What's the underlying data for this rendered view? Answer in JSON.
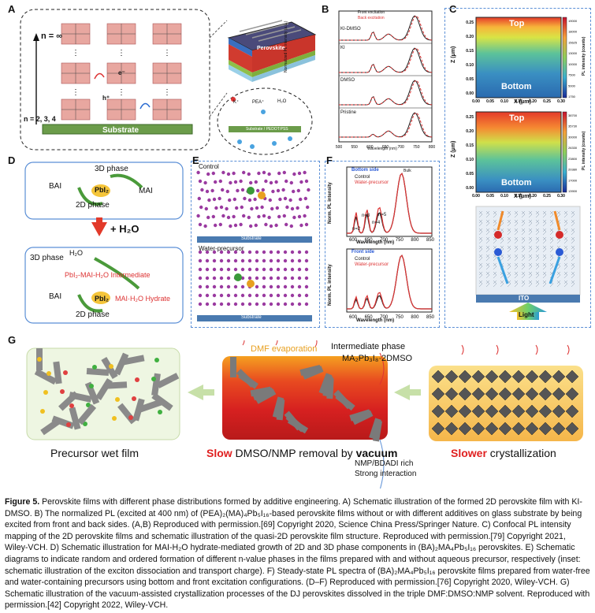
{
  "panel_labels": {
    "a": "A",
    "b": "B",
    "c": "C",
    "d": "D",
    "e": "E",
    "f": "F",
    "g": "G"
  },
  "panel_a": {
    "n_inf": "n = ∞",
    "n_234": "n = 2, 3, 4",
    "substrate": "Substrate",
    "stack_layers": [
      "Ag",
      "BCP",
      "PC₆₁BM",
      "Perovskite",
      "PEDOT:PSS",
      "ITO"
    ],
    "e_minus": "e⁻",
    "h_plus": "h⁺",
    "legend": [
      "K⁺",
      "PEA⁺",
      "H₂O"
    ],
    "bubble_substrate": "Substrate / PEDOT:PSS"
  },
  "panel_b": {
    "legend": [
      "Front excitation",
      "Back excitation"
    ],
    "ylabel": "Normalized PL intensity (a.u.)",
    "xlabel": "Wavelength (nm)",
    "rows": [
      "KI-DMSO",
      "KI",
      "DMSO",
      "Pristine"
    ],
    "ticks": [
      "500",
      "550",
      "600",
      "650",
      "700",
      "750",
      "800"
    ]
  },
  "panel_c": {
    "top": "Top",
    "bottom": "Bottom",
    "ylabel": "Z (μm)",
    "xlabel": "X (μm)",
    "colorbar_label": "PL intensity (counts)",
    "y_ticks": [
      "0.25",
      "0.20",
      "0.15",
      "0.10",
      "0.05",
      "0.00"
    ],
    "x_ticks": [
      "0.00",
      "0.05",
      "0.10",
      "0.15",
      "0.20",
      "0.25",
      "0.30"
    ],
    "cbar1": [
      "19000",
      "18000",
      "15625",
      "13000",
      "10000",
      "7500",
      "5000",
      "1750"
    ],
    "cbar2": [
      "38700",
      "35730",
      "30000",
      "26330",
      "23800",
      "20380",
      "17000",
      "13900"
    ],
    "ito": "ITO",
    "light": "Light"
  },
  "panel_d": {
    "bai": "BAI",
    "pbi2": "PbI₂",
    "mai": "MAI",
    "phase3d": "3D phase",
    "phase2d": "2D phase",
    "plus_h2o": "+ H₂O",
    "h2o": "H₂O",
    "intermediate": "PbI₂-MAI-H₂O Intermediate",
    "hydrate": "MAI·H₂O Hydrate"
  },
  "panel_e": {
    "control": "Control",
    "water": "Water-precursor",
    "substrate": "Substrate"
  },
  "panel_f": {
    "bottom_side": "Bottom side",
    "front_side": "Front side",
    "legend": [
      "Control",
      "Water-precursor"
    ],
    "ylabel": "Norm. PL intensity",
    "xlabel": "Wavelength (nm)",
    "ticks": [
      "600",
      "650",
      "700",
      "750",
      "800",
      "850"
    ],
    "n_labels": [
      "n=2",
      "n=3",
      "n=4",
      "n=5"
    ],
    "bulk": "Bulk"
  },
  "panel_g": {
    "dmf": "DMF evaporation",
    "intermediate_line1": "Intermediate phase",
    "intermediate_line2": "MA₂Pb₃I₈·2DMSO",
    "nmp1": "NMP/BDADI rich",
    "nmp2": "Strong interaction",
    "label1": "Precursor wet film",
    "label2_slow": "Slow",
    "label2_mid": " DMSO/NMP removal by ",
    "label2_vac": "vacuum",
    "label3_slow": "Slower",
    "label3_rest": " crystallization"
  },
  "caption": {
    "fig": "Figure 5.",
    "text": " Perovskite films with different phase distributions formed by additive engineering. A) Schematic illustration of the formed 2D perovskite film with KI-DMSO. B) The normalized PL (excited at 400 nm) of (PEA)₂(MA)₄Pb₅I₁₆-based perovskite films without or with different additives on glass substrate by being excited from front and back sides. (A,B) Reproduced with permission.[69] Copyright 2020, Science China Press/Springer Nature. C) Confocal PL intensity mapping of the 2D perovskite films and schematic illustration of the quasi-2D perovskite film structure. Reproduced with permission.[79] Copyright 2021, Wiley-VCH. D) Schematic illustration for MAI-H₂O hydrate-mediated growth of 2D and 3D phase components in (BA)₂MA₄Pb₅I₁₆ perovskites. E) Schematic diagrams to indicate random and ordered formation of different n-value phases in the films prepared with and without aqueous precursor, respectively (inset: schematic illustration of the exciton dissociation and transport charge). F) Steady-state PL spectra of (BA)₂MA₄Pb₅I₁₆ perovskite films prepared from water-free and water-containing precursors using bottom and front excitation configurations. (D–F) Reproduced with permission.[76] Copyright 2020, Wiley-VCH. G) Schematic illustration of the vacuum-assisted crystallization processes of the DJ perovskites dissolved in the triple DMF:DMSO:NMP solvent. Reproduced with permission.[42] Copyright 2022, Wiley-VCH."
  }
}
